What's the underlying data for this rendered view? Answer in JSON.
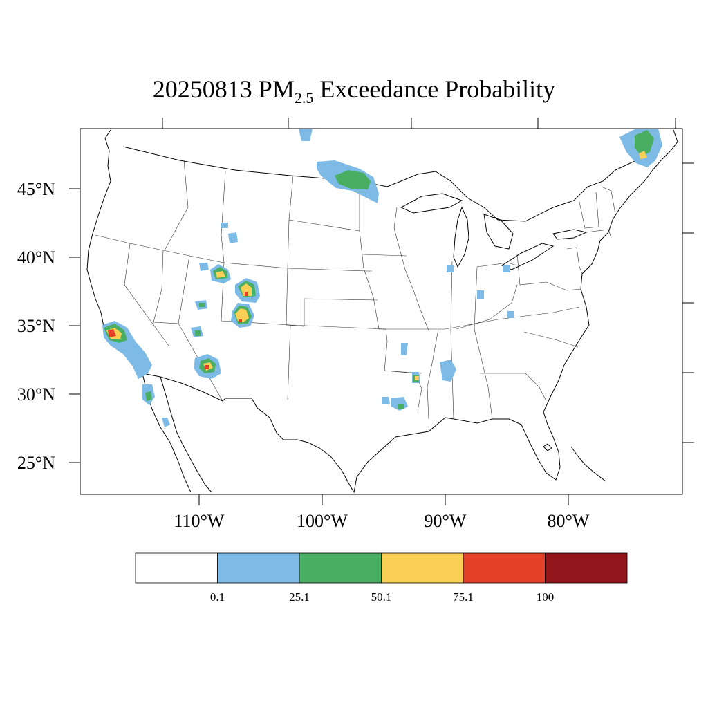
{
  "title": {
    "date": "20250813",
    "species": "PM",
    "subscript": "2.5",
    "suffix": "Exceedance Probability"
  },
  "axes": {
    "lat_labels": [
      "45°N",
      "40°N",
      "35°N",
      "30°N",
      "25°N"
    ],
    "lon_labels": [
      "110°W",
      "100°W",
      "90°W",
      "80°W"
    ]
  },
  "colorbar": {
    "colors": [
      "#ffffff",
      "#7dbbe6",
      "#4aae62",
      "#f9cf55",
      "#e34027",
      "#94161d"
    ],
    "labels": [
      "0.1",
      "25.1",
      "50.1",
      "75.1",
      "100"
    ]
  },
  "plumes": [
    {
      "region": "Southern California",
      "levels": [
        "blue",
        "green",
        "yellow",
        "red"
      ]
    },
    {
      "region": "Colorado",
      "levels": [
        "blue",
        "green",
        "yellow",
        "red"
      ]
    },
    {
      "region": "Utah",
      "levels": [
        "blue",
        "green",
        "yellow"
      ]
    },
    {
      "region": "Arizona",
      "levels": [
        "blue",
        "green",
        "yellow",
        "red"
      ]
    },
    {
      "region": "North Dakota / Minnesota",
      "levels": [
        "blue",
        "green"
      ]
    },
    {
      "region": "Quebec / Maine",
      "levels": [
        "blue",
        "green",
        "yellow"
      ]
    },
    {
      "region": "Louisiana / Arkansas",
      "levels": [
        "blue",
        "green",
        "yellow"
      ]
    }
  ]
}
